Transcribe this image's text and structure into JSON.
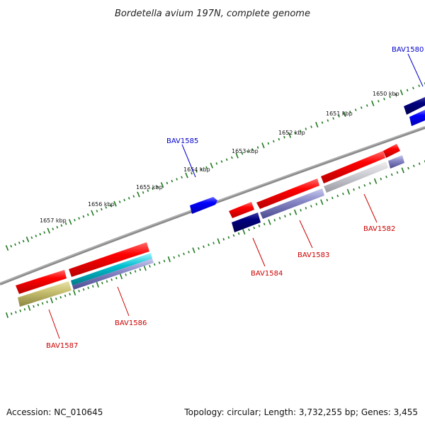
{
  "title": "Bordetella avium 197N, complete genome",
  "footer": {
    "accession": "Accession: NC_010645",
    "summary": "Topology: circular; Length: 3,732,255 bp; Genes: 3,455"
  },
  "ticks": [
    {
      "label": "1650 kbp"
    },
    {
      "label": "1651 kbp"
    },
    {
      "label": "1652 kbp"
    },
    {
      "label": "1653 kbp"
    },
    {
      "label": "1654 kbp"
    },
    {
      "label": "1655 kbp"
    },
    {
      "label": "1656 kbp"
    },
    {
      "label": "1657 kbp"
    }
  ],
  "genes": [
    {
      "label": "BAV1580",
      "color": "#0000cc"
    },
    {
      "label": "BAV1582",
      "color": "#cc0000"
    },
    {
      "label": "BAV1583",
      "color": "#cc0000"
    },
    {
      "label": "BAV1584",
      "color": "#cc0000"
    },
    {
      "label": "BAV1585",
      "color": "#0000cc"
    },
    {
      "label": "BAV1586",
      "color": "#cc0000"
    },
    {
      "label": "BAV1587",
      "color": "#cc0000"
    }
  ],
  "colors": {
    "backbone": "#808080",
    "tick": "#1e7a1e",
    "forward_feature": "#0000ff",
    "reverse_feature": "#ff0000",
    "navy_feature": "#000080",
    "lavender_feature": "#9999cc",
    "cyan_feature": "#00bbcc",
    "grey_feature": "#c8c8d0",
    "olive_feature": "#bdb76b"
  }
}
